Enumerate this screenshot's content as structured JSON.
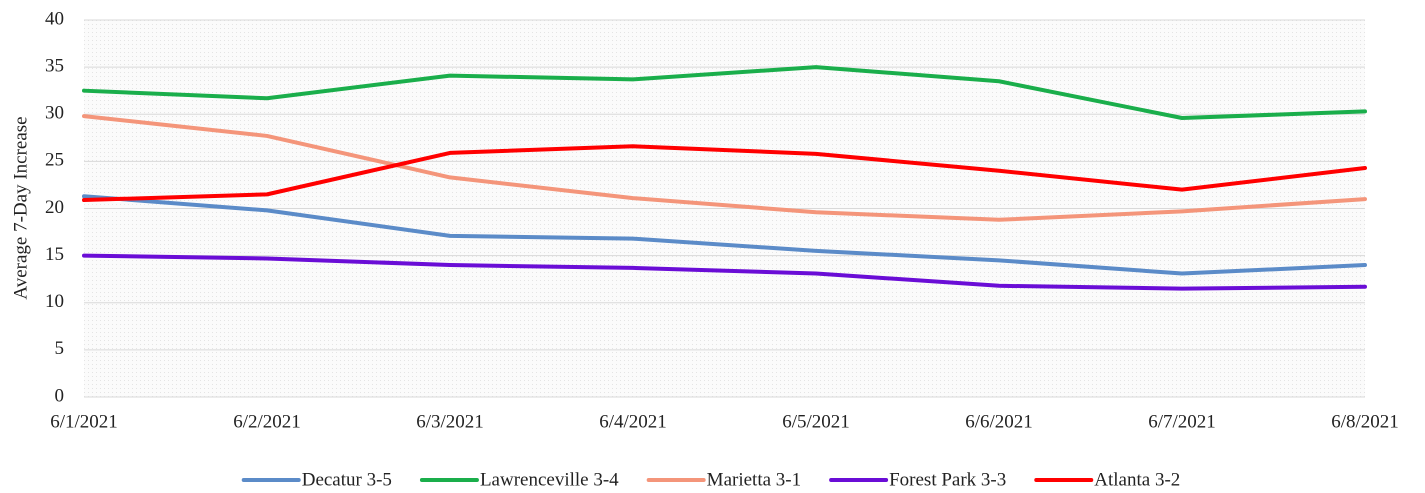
{
  "chart_data": {
    "type": "line",
    "y_label": "Average 7-Day Increase",
    "categories": [
      "6/1/2021",
      "6/2/2021",
      "6/3/2021",
      "6/4/2021",
      "6/5/2021",
      "6/6/2021",
      "6/7/2021",
      "6/8/2021"
    ],
    "series": [
      {
        "name": "Decatur 3-5",
        "color": "#5b8bc8",
        "values": [
          21.3,
          19.8,
          17.1,
          16.8,
          15.5,
          14.5,
          13.1,
          14.0
        ]
      },
      {
        "name": "Lawrenceville 3-4",
        "color": "#1aae4b",
        "values": [
          32.5,
          31.7,
          34.1,
          33.7,
          35.0,
          33.5,
          29.6,
          30.3
        ]
      },
      {
        "name": "Marietta 3-1",
        "color": "#f4957a",
        "values": [
          29.8,
          27.7,
          23.3,
          21.1,
          19.6,
          18.8,
          19.7,
          21.0
        ]
      },
      {
        "name": "Forest Park 3-3",
        "color": "#6a0dd6",
        "values": [
          15.0,
          14.7,
          14.0,
          13.7,
          13.1,
          11.8,
          11.5,
          11.7
        ]
      },
      {
        "name": "Atlanta 3-2",
        "color": "#ff0000",
        "values": [
          20.9,
          21.5,
          25.9,
          26.6,
          25.8,
          24.0,
          22.0,
          24.3
        ]
      }
    ],
    "ylim": [
      0,
      40
    ],
    "yticks": [
      0,
      5,
      10,
      15,
      20,
      25,
      30,
      35,
      40
    ],
    "grid": true,
    "legend": "bottom"
  }
}
